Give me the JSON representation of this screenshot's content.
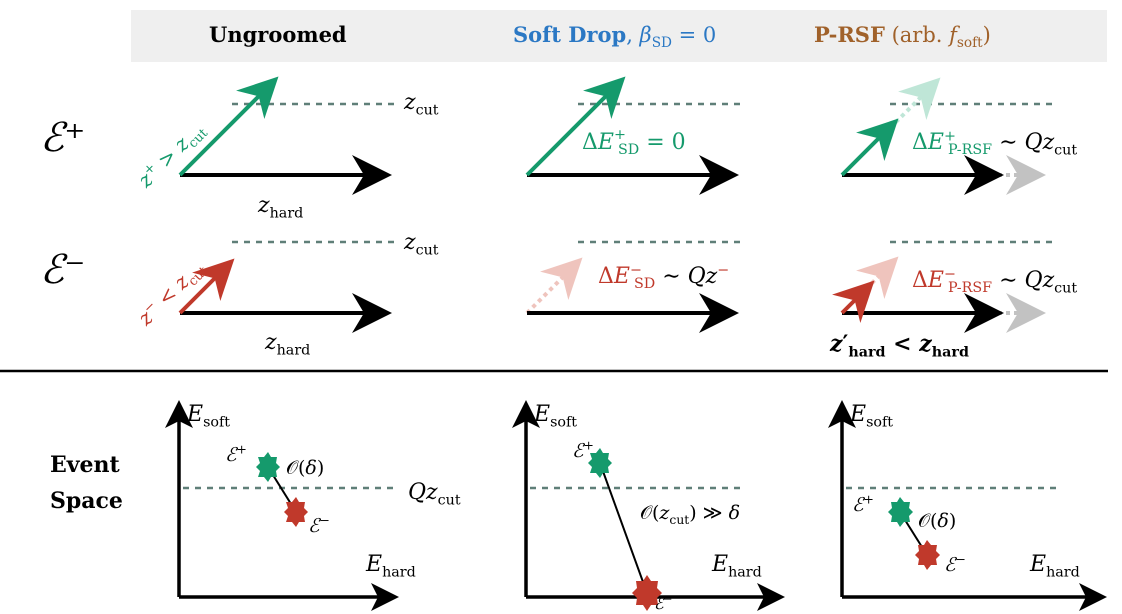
{
  "header": {
    "col1": "Ungroomed",
    "col2_bold": "Soft Drop",
    "col2_rest": ", β_SD = 0",
    "col3_bold": "P-RSF",
    "col3_rest": " (arb. f_soft)"
  },
  "rows": {
    "plus_label": "ℰ⁺",
    "minus_label": "ℰ⁻"
  },
  "labels": {
    "zcut_1": "z_cut",
    "zcut_2": "z_cut",
    "zhard_1": "z_hard",
    "zhard_2": "z_hard",
    "zplus_gt": "z⁺ > z_cut",
    "zminus_lt": "z⁻ < z_cut",
    "dE_sd_plus": "ΔE⁺_SD = 0",
    "dE_sd_minus": "ΔE⁻_SD ∼ Qz⁻",
    "dE_prsf_plus": "ΔE⁺_P-RSF ∼ Qz_cut",
    "dE_prsf_minus": "ΔE⁻_P-RSF ∼ Qz_cut",
    "zhard_prime": "z′_hard < z_hard"
  },
  "event_space": {
    "title_line1": "Event",
    "title_line2": "Space",
    "axis_y": "E_soft",
    "axis_x": "E_hard",
    "qzcut": "Qz_cut",
    "order_delta": "𝒪(δ)",
    "order_zcut": "𝒪(z_cut) ≫ δ",
    "e_plus": "ℰ⁺",
    "e_minus": "ℰ⁻"
  },
  "colors": {
    "green": "#159a6c",
    "red": "#c0392b",
    "blue": "#2b78c4",
    "brown": "#a0612a",
    "dashed": "#5f7f78",
    "header_bg": "#efefef"
  }
}
